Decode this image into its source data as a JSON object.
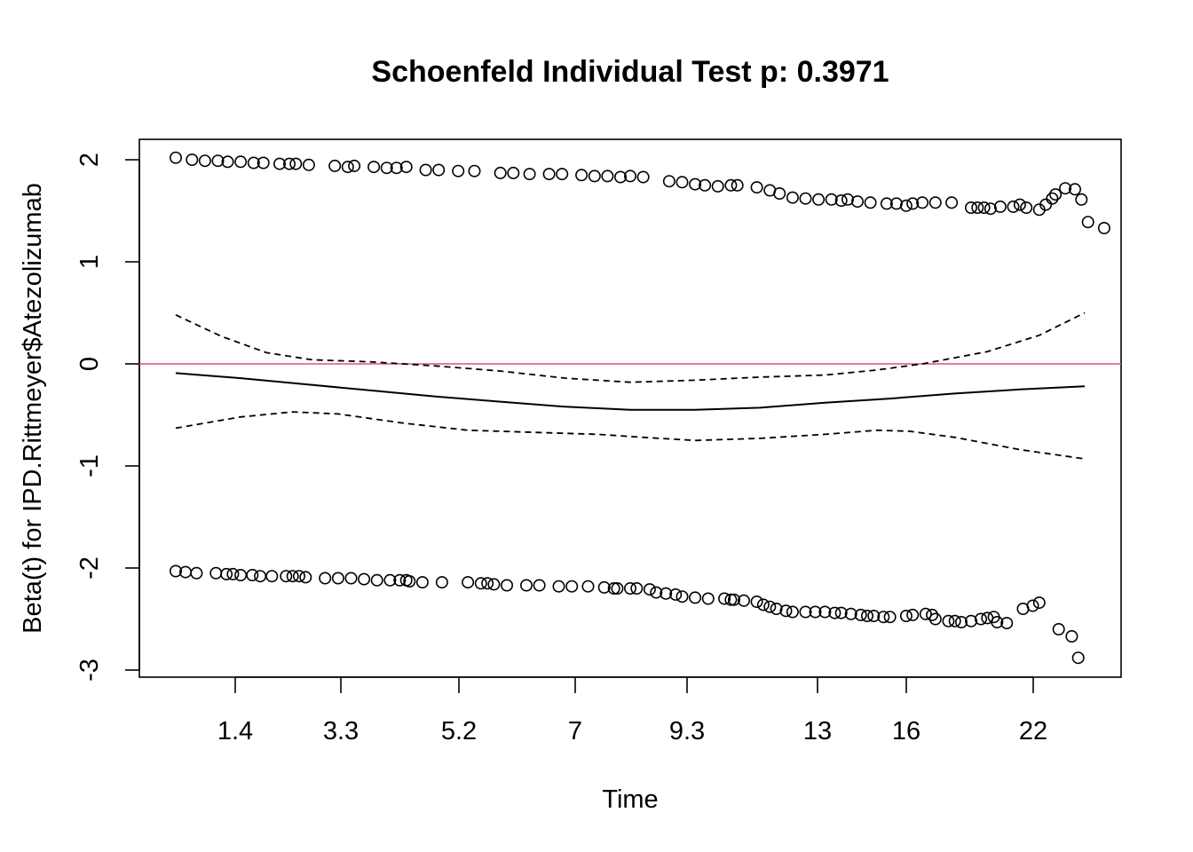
{
  "chart_data": {
    "type": "scatter",
    "title": "Schoenfeld Individual Test p: 0.3971",
    "xlabel": "Time",
    "ylabel": "Beta(t) for IPD.Rittmeyer$Atezolizumab",
    "ylim": [
      -3.13,
      2.16
    ],
    "y_ticks": [
      2,
      1,
      0,
      -1,
      -2,
      -3
    ],
    "y_tick_labels": [
      "2",
      "1",
      "0",
      "-1",
      "-2",
      "-3"
    ],
    "x_tick_labels": [
      "1.4",
      "3.3",
      "5.2",
      "7",
      "9.3",
      "13",
      "16",
      "22"
    ],
    "reference_line": {
      "y": 0,
      "color": "#DF536B"
    },
    "grid": false,
    "legend": "none",
    "curves": {
      "fit": [
        [
          0.0,
          -0.09
        ],
        [
          0.1,
          -0.14
        ],
        [
          0.2,
          -0.2
        ],
        [
          0.3,
          -0.26
        ],
        [
          0.4,
          -0.32
        ],
        [
          0.5,
          -0.37
        ],
        [
          0.6,
          -0.42
        ],
        [
          0.7,
          -0.45
        ],
        [
          0.8,
          -0.45
        ],
        [
          0.9,
          -0.43
        ],
        [
          1.0,
          -0.38
        ],
        [
          1.1,
          -0.34
        ],
        [
          1.2,
          -0.29
        ],
        [
          1.3,
          -0.25
        ],
        [
          1.4,
          -0.22
        ]
      ],
      "upper": [
        [
          0.0,
          0.48
        ],
        [
          0.07,
          0.27
        ],
        [
          0.14,
          0.11
        ],
        [
          0.21,
          0.04
        ],
        [
          0.3,
          0.02
        ],
        [
          0.4,
          -0.02
        ],
        [
          0.5,
          -0.07
        ],
        [
          0.6,
          -0.14
        ],
        [
          0.7,
          -0.18
        ],
        [
          0.8,
          -0.16
        ],
        [
          0.9,
          -0.13
        ],
        [
          1.0,
          -0.11
        ],
        [
          1.08,
          -0.06
        ],
        [
          1.15,
          0.0
        ],
        [
          1.25,
          0.12
        ],
        [
          1.33,
          0.28
        ],
        [
          1.4,
          0.5
        ]
      ],
      "lower": [
        [
          0.0,
          -0.63
        ],
        [
          0.1,
          -0.52
        ],
        [
          0.18,
          -0.47
        ],
        [
          0.25,
          -0.49
        ],
        [
          0.35,
          -0.58
        ],
        [
          0.45,
          -0.65
        ],
        [
          0.55,
          -0.67
        ],
        [
          0.65,
          -0.69
        ],
        [
          0.72,
          -0.72
        ],
        [
          0.8,
          -0.75
        ],
        [
          0.9,
          -0.73
        ],
        [
          1.0,
          -0.69
        ],
        [
          1.08,
          -0.65
        ],
        [
          1.13,
          -0.66
        ],
        [
          1.2,
          -0.72
        ],
        [
          1.3,
          -0.84
        ],
        [
          1.4,
          -0.93
        ]
      ]
    },
    "points_upper": [
      [
        0.0,
        2.02
      ],
      [
        0.025,
        2.0
      ],
      [
        0.045,
        1.99
      ],
      [
        0.065,
        1.99
      ],
      [
        0.08,
        1.98
      ],
      [
        0.1,
        1.98
      ],
      [
        0.12,
        1.97
      ],
      [
        0.135,
        1.97
      ],
      [
        0.16,
        1.96
      ],
      [
        0.175,
        1.96
      ],
      [
        0.185,
        1.96
      ],
      [
        0.205,
        1.95
      ],
      [
        0.245,
        1.94
      ],
      [
        0.265,
        1.93
      ],
      [
        0.275,
        1.94
      ],
      [
        0.305,
        1.93
      ],
      [
        0.325,
        1.92
      ],
      [
        0.34,
        1.92
      ],
      [
        0.355,
        1.93
      ],
      [
        0.385,
        1.9
      ],
      [
        0.405,
        1.9
      ],
      [
        0.435,
        1.89
      ],
      [
        0.46,
        1.89
      ],
      [
        0.5,
        1.87
      ],
      [
        0.52,
        1.87
      ],
      [
        0.545,
        1.86
      ],
      [
        0.575,
        1.86
      ],
      [
        0.595,
        1.86
      ],
      [
        0.625,
        1.85
      ],
      [
        0.645,
        1.84
      ],
      [
        0.665,
        1.84
      ],
      [
        0.685,
        1.83
      ],
      [
        0.7,
        1.84
      ],
      [
        0.72,
        1.83
      ],
      [
        0.76,
        1.79
      ],
      [
        0.78,
        1.78
      ],
      [
        0.8,
        1.76
      ],
      [
        0.815,
        1.75
      ],
      [
        0.835,
        1.74
      ],
      [
        0.855,
        1.75
      ],
      [
        0.865,
        1.75
      ],
      [
        0.895,
        1.73
      ],
      [
        0.915,
        1.7
      ],
      [
        0.93,
        1.67
      ],
      [
        0.95,
        1.63
      ],
      [
        0.97,
        1.62
      ],
      [
        0.99,
        1.61
      ],
      [
        1.01,
        1.61
      ],
      [
        1.025,
        1.6
      ],
      [
        1.035,
        1.61
      ],
      [
        1.05,
        1.59
      ],
      [
        1.07,
        1.58
      ],
      [
        1.095,
        1.57
      ],
      [
        1.11,
        1.57
      ],
      [
        1.125,
        1.55
      ],
      [
        1.135,
        1.57
      ],
      [
        1.15,
        1.58
      ],
      [
        1.17,
        1.58
      ],
      [
        1.195,
        1.58
      ],
      [
        1.225,
        1.53
      ],
      [
        1.235,
        1.53
      ],
      [
        1.245,
        1.53
      ],
      [
        1.255,
        1.52
      ],
      [
        1.27,
        1.54
      ],
      [
        1.29,
        1.54
      ],
      [
        1.3,
        1.56
      ],
      [
        1.31,
        1.53
      ],
      [
        1.33,
        1.51
      ],
      [
        1.34,
        1.56
      ],
      [
        1.35,
        1.62
      ],
      [
        1.355,
        1.66
      ],
      [
        1.37,
        1.72
      ],
      [
        1.385,
        1.71
      ],
      [
        1.395,
        1.61
      ],
      [
        1.405,
        1.39
      ],
      [
        1.43,
        1.33
      ]
    ],
    "points_lower": [
      [
        0.0,
        -2.03
      ],
      [
        0.015,
        -2.04
      ],
      [
        0.032,
        -2.05
      ],
      [
        0.062,
        -2.05
      ],
      [
        0.078,
        -2.06
      ],
      [
        0.088,
        -2.06
      ],
      [
        0.1,
        -2.07
      ],
      [
        0.118,
        -2.07
      ],
      [
        0.13,
        -2.08
      ],
      [
        0.148,
        -2.08
      ],
      [
        0.17,
        -2.08
      ],
      [
        0.18,
        -2.08
      ],
      [
        0.19,
        -2.08
      ],
      [
        0.2,
        -2.09
      ],
      [
        0.23,
        -2.1
      ],
      [
        0.25,
        -2.1
      ],
      [
        0.27,
        -2.1
      ],
      [
        0.29,
        -2.11
      ],
      [
        0.31,
        -2.12
      ],
      [
        0.33,
        -2.12
      ],
      [
        0.345,
        -2.12
      ],
      [
        0.355,
        -2.12
      ],
      [
        0.36,
        -2.13
      ],
      [
        0.38,
        -2.14
      ],
      [
        0.41,
        -2.14
      ],
      [
        0.45,
        -2.14
      ],
      [
        0.47,
        -2.15
      ],
      [
        0.48,
        -2.15
      ],
      [
        0.49,
        -2.16
      ],
      [
        0.51,
        -2.17
      ],
      [
        0.54,
        -2.17
      ],
      [
        0.56,
        -2.17
      ],
      [
        0.59,
        -2.18
      ],
      [
        0.61,
        -2.18
      ],
      [
        0.635,
        -2.18
      ],
      [
        0.66,
        -2.19
      ],
      [
        0.675,
        -2.2
      ],
      [
        0.68,
        -2.2
      ],
      [
        0.7,
        -2.2
      ],
      [
        0.71,
        -2.2
      ],
      [
        0.73,
        -2.21
      ],
      [
        0.74,
        -2.24
      ],
      [
        0.755,
        -2.25
      ],
      [
        0.77,
        -2.26
      ],
      [
        0.78,
        -2.28
      ],
      [
        0.8,
        -2.29
      ],
      [
        0.82,
        -2.3
      ],
      [
        0.845,
        -2.3
      ],
      [
        0.855,
        -2.31
      ],
      [
        0.86,
        -2.31
      ],
      [
        0.875,
        -2.32
      ],
      [
        0.895,
        -2.33
      ],
      [
        0.905,
        -2.36
      ],
      [
        0.915,
        -2.38
      ],
      [
        0.925,
        -2.4
      ],
      [
        0.94,
        -2.42
      ],
      [
        0.95,
        -2.43
      ],
      [
        0.97,
        -2.43
      ],
      [
        0.985,
        -2.43
      ],
      [
        1.0,
        -2.43
      ],
      [
        1.015,
        -2.44
      ],
      [
        1.025,
        -2.44
      ],
      [
        1.04,
        -2.45
      ],
      [
        1.055,
        -2.46
      ],
      [
        1.065,
        -2.47
      ],
      [
        1.075,
        -2.47
      ],
      [
        1.09,
        -2.48
      ],
      [
        1.1,
        -2.48
      ],
      [
        1.125,
        -2.47
      ],
      [
        1.135,
        -2.46
      ],
      [
        1.155,
        -2.45
      ],
      [
        1.165,
        -2.46
      ],
      [
        1.17,
        -2.5
      ],
      [
        1.19,
        -2.52
      ],
      [
        1.2,
        -2.52
      ],
      [
        1.21,
        -2.53
      ],
      [
        1.225,
        -2.52
      ],
      [
        1.24,
        -2.5
      ],
      [
        1.25,
        -2.49
      ],
      [
        1.26,
        -2.48
      ],
      [
        1.265,
        -2.53
      ],
      [
        1.28,
        -2.54
      ],
      [
        1.305,
        -2.4
      ],
      [
        1.32,
        -2.37
      ],
      [
        1.33,
        -2.34
      ],
      [
        1.36,
        -2.6
      ],
      [
        1.38,
        -2.67
      ],
      [
        1.39,
        -2.88
      ]
    ]
  }
}
